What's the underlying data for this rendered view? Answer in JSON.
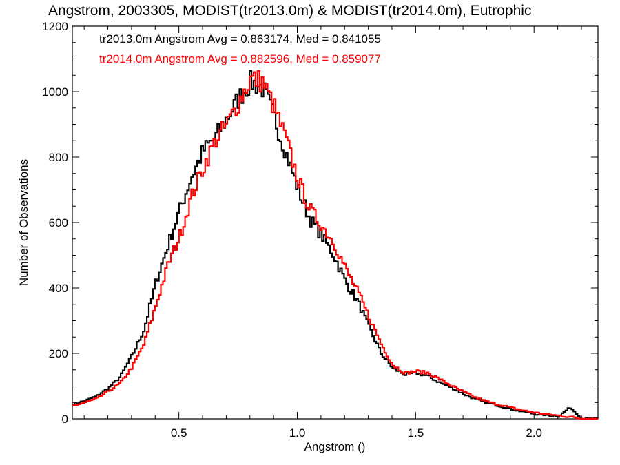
{
  "chart_data": {
    "type": "line",
    "title": "Angstrom, 2003305, MODIST(tr2013.0m) & MODIST(tr2014.0m), Eutrophic",
    "xlabel": "Angstrom ()",
    "ylabel": "Number of Observations",
    "xlim": [
      0.05,
      2.27
    ],
    "ylim": [
      0,
      1200
    ],
    "x_ticks": [
      0.5,
      1.0,
      1.5,
      2.0
    ],
    "x_tick_labels": [
      "0.5",
      "1.0",
      "1.5",
      "2.0"
    ],
    "y_ticks": [
      0,
      200,
      400,
      600,
      800,
      1000,
      1200
    ],
    "y_tick_labels": [
      "0",
      "200",
      "400",
      "600",
      "800",
      "1000",
      "1200"
    ],
    "legend": [
      {
        "text": "tr2013.0m Angstrom Avg = 0.863174, Med = 0.841055",
        "color": "#000000"
      },
      {
        "text": "tr2014.0m Angstrom Avg = 0.882596, Med = 0.859077",
        "color": "#ff0000"
      }
    ],
    "legend_position": "top-left",
    "grid": false,
    "series": [
      {
        "color": "#000000",
        "style": "step",
        "x": [
          0.05,
          0.1,
          0.15,
          0.2,
          0.25,
          0.3,
          0.35,
          0.4,
          0.45,
          0.5,
          0.55,
          0.6,
          0.65,
          0.7,
          0.75,
          0.8,
          0.85,
          0.9,
          0.95,
          1.0,
          1.05,
          1.1,
          1.15,
          1.2,
          1.25,
          1.3,
          1.35,
          1.4,
          1.45,
          1.5,
          1.55,
          1.6,
          1.65,
          1.7,
          1.75,
          1.8,
          1.85,
          1.9,
          1.95,
          2.0,
          2.05,
          2.1,
          2.15,
          2.2,
          2.27
        ],
        "y": [
          45,
          55,
          70,
          95,
          130,
          195,
          275,
          420,
          530,
          640,
          740,
          820,
          860,
          920,
          980,
          1030,
          1010,
          920,
          810,
          700,
          610,
          560,
          500,
          420,
          360,
          280,
          200,
          155,
          135,
          140,
          130,
          110,
          95,
          75,
          60,
          48,
          40,
          30,
          22,
          15,
          12,
          8,
          35,
          0,
          0
        ]
      },
      {
        "color": "#ff0000",
        "style": "step",
        "x": [
          0.05,
          0.1,
          0.15,
          0.2,
          0.25,
          0.3,
          0.35,
          0.4,
          0.45,
          0.5,
          0.55,
          0.6,
          0.65,
          0.7,
          0.75,
          0.8,
          0.85,
          0.9,
          0.95,
          1.0,
          1.05,
          1.1,
          1.15,
          1.2,
          1.25,
          1.3,
          1.35,
          1.4,
          1.45,
          1.5,
          1.55,
          1.6,
          1.65,
          1.7,
          1.75,
          1.8,
          1.85,
          1.9,
          1.95,
          2.0,
          2.05,
          2.1,
          2.15,
          2.2,
          2.27
        ],
        "y": [
          40,
          50,
          62,
          85,
          110,
          160,
          230,
          350,
          470,
          560,
          680,
          770,
          850,
          900,
          970,
          1040,
          1030,
          950,
          850,
          730,
          640,
          590,
          540,
          460,
          390,
          310,
          230,
          165,
          140,
          145,
          140,
          120,
          100,
          82,
          65,
          52,
          43,
          34,
          26,
          19,
          14,
          10,
          6,
          0,
          0
        ]
      }
    ]
  }
}
